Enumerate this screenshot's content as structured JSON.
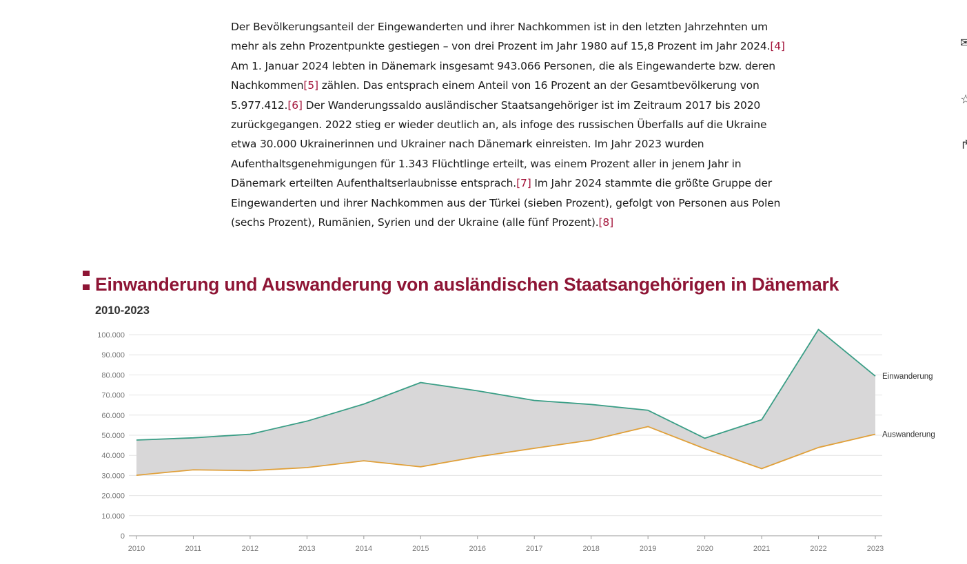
{
  "article": {
    "segments": [
      {
        "text": "Der Bevölkerungsanteil der Eingewanderten und ihrer Nachkommen ist in den letzten Jahrzehnten um mehr als zehn Prozentpunkte gestiegen – von drei Prozent im Jahr 1980 auf 15,8 Prozent im Jahr 2024.",
        "link": false
      },
      {
        "text": "[4]",
        "link": true
      },
      {
        "text": " Am 1. Januar 2024 lebten in Dänemark insgesamt 943.066 Personen, die als Eingewanderte bzw. deren Nachkommen",
        "link": false
      },
      {
        "text": "[5]",
        "link": true
      },
      {
        "text": " zählen. Das entsprach einem Anteil von 16 Prozent an der Gesamtbevölkerung von 5.977.412.",
        "link": false
      },
      {
        "text": "[6]",
        "link": true
      },
      {
        "text": " Der Wanderungssaldo ausländischer Staatsangehöriger ist im Zeitraum 2017 bis 2020 zurückgegangen. 2022 stieg er wieder deutlich an, als infoge des russischen Überfalls auf die Ukraine etwa 30.000 Ukrainerinnen und Ukrainer nach Dänemark einreisten. Im Jahr 2023 wurden Aufenthaltsgenehmigungen für 1.343 Flüchtlinge erteilt, was einem Prozent aller in jenem Jahr in Dänemark erteilten Aufenthaltserlaubnisse entsprach.",
        "link": false
      },
      {
        "text": "[7]",
        "link": true
      },
      {
        "text": " Im Jahr 2024 stammte die größte Gruppe der Eingewanderten und ihrer Nachkommen aus der Türkei (sieben Prozent), gefolgt von Personen aus Polen (sechs Prozent), Rumänien, Syrien und der Ukraine (alle fünf Prozent).",
        "link": false
      },
      {
        "text": "[8]",
        "link": true
      }
    ]
  },
  "colors": {
    "accent": "#8e1535",
    "link": "#a3143a",
    "einwanderung": "#3a9e86",
    "auswanderung": "#e0a03a",
    "area": "#d8d7d8",
    "grid": "#e4e4e4"
  },
  "chart_data": {
    "type": "line",
    "title": "Einwanderung und Auswanderung von ausländischen Staatsangehörigen in Dänemark",
    "subtitle": "2010-2023",
    "x": [
      "2010",
      "2011",
      "2012",
      "2013",
      "2014",
      "2015",
      "2016",
      "2017",
      "2018",
      "2019",
      "2020",
      "2021",
      "2022",
      "2023"
    ],
    "series": [
      {
        "name": "Einwanderung",
        "color": "#3a9e86",
        "values": [
          47600,
          48700,
          50500,
          57000,
          65500,
          76200,
          72100,
          67300,
          65300,
          62400,
          48500,
          57700,
          102600,
          79400
        ]
      },
      {
        "name": "Auswanderung",
        "color": "#e0a03a",
        "values": [
          30100,
          32800,
          32400,
          33900,
          37300,
          34300,
          39300,
          43500,
          47600,
          54300,
          43300,
          33400,
          43900,
          50500
        ]
      }
    ],
    "y_ticks": [
      0,
      10000,
      20000,
      30000,
      40000,
      50000,
      60000,
      70000,
      80000,
      90000,
      100000
    ],
    "y_tick_labels": [
      "0",
      "10.000",
      "20.000",
      "30.000",
      "40.000",
      "50.000",
      "60.000",
      "70.000",
      "80.000",
      "90.000",
      "100.000"
    ],
    "ylim": [
      0,
      100000
    ],
    "fill_between": true,
    "grid": true,
    "legend": "end-of-line labels"
  }
}
